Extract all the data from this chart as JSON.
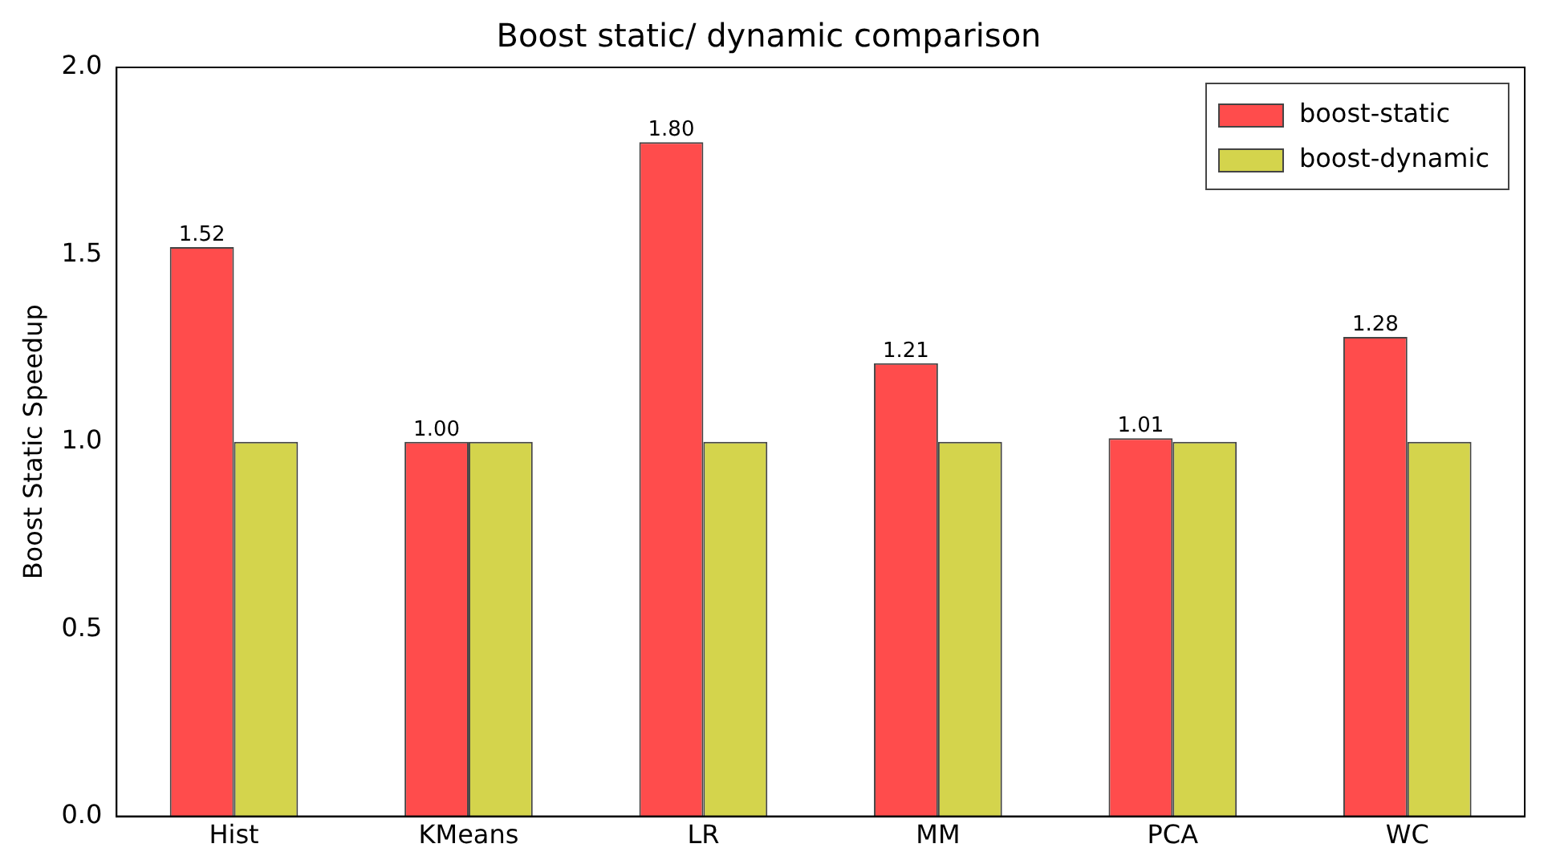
{
  "chart_data": {
    "type": "bar",
    "title": "Boost static/ dynamic comparison",
    "ylabel": "Boost Static Speedup",
    "categories": [
      "Hist",
      "KMeans",
      "LR",
      "MM",
      "PCA",
      "WC"
    ],
    "series": [
      {
        "name": "boost-static",
        "color": "#ff4c4c",
        "values": [
          1.52,
          1.0,
          1.8,
          1.21,
          1.01,
          1.28
        ],
        "value_labels": [
          "1.52",
          "1.00",
          "1.80",
          "1.21",
          "1.01",
          "1.28"
        ]
      },
      {
        "name": "boost-dynamic",
        "color": "#d4d44c",
        "values": [
          1.0,
          1.0,
          1.0,
          1.0,
          1.0,
          1.0
        ]
      }
    ],
    "ylim": [
      0,
      2
    ],
    "yticks": [
      {
        "value": 0,
        "label": "0.0"
      },
      {
        "value": 0.5,
        "label": "0.5"
      },
      {
        "value": 1,
        "label": "1.0"
      },
      {
        "value": 1.5,
        "label": "1.5"
      },
      {
        "value": 2,
        "label": "2.0"
      }
    ],
    "grid": false,
    "legend": "top right"
  }
}
